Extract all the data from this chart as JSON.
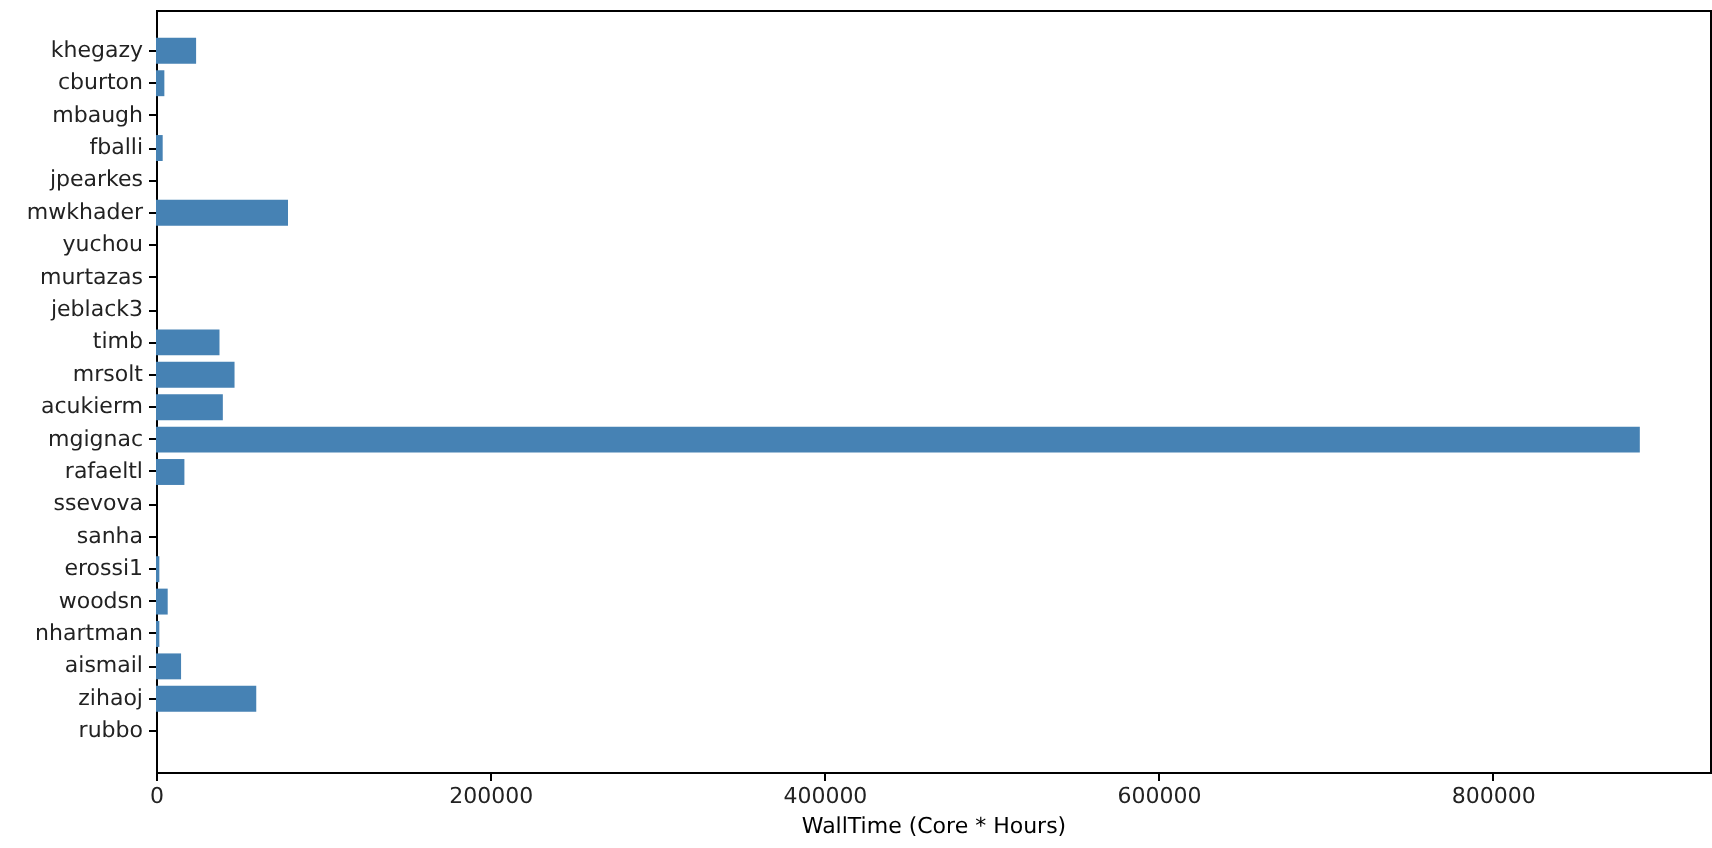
{
  "chart_data": {
    "type": "bar",
    "orientation": "horizontal",
    "xlabel": "WallTime (Core * Hours)",
    "categories": [
      "khegazy",
      "cburton",
      "mbaugh",
      "fballi",
      "jpearkes",
      "mwkhader",
      "yuchou",
      "murtazas",
      "jeblack3",
      "timb",
      "mrsolt",
      "acukierm",
      "mgignac",
      "rafaeltl",
      "ssevova",
      "sanha",
      "erossi1",
      "woodsn",
      "nhartman",
      "aismail",
      "zihaoj",
      "rubbo"
    ],
    "values": [
      24000,
      5000,
      0,
      4000,
      0,
      79000,
      0,
      0,
      0,
      38000,
      47000,
      40000,
      888000,
      17000,
      0,
      0,
      2000,
      7000,
      2000,
      15000,
      60000,
      0
    ],
    "color": "#4682b4",
    "xlim": [
      0,
      930000
    ],
    "xticks": [
      0,
      200000,
      400000,
      600000,
      800000
    ],
    "grid": false
  }
}
